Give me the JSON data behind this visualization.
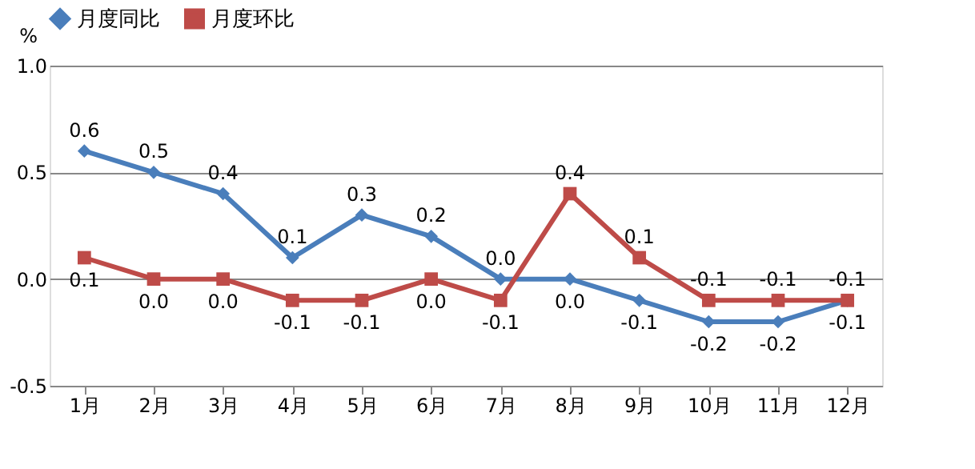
{
  "chart_data": {
    "type": "line",
    "ylabel": "%",
    "categories": [
      "1月",
      "2月",
      "3月",
      "4月",
      "5月",
      "6月",
      "7月",
      "8月",
      "9月",
      "10月",
      "11月",
      "12月"
    ],
    "series": [
      {
        "name": "月度同比",
        "color": "#4a7ebb",
        "marker": "diamond",
        "values": [
          0.6,
          0.5,
          0.4,
          0.1,
          0.3,
          0.2,
          0.0,
          0.0,
          -0.1,
          -0.2,
          -0.2,
          -0.1
        ],
        "value_labels": [
          "0.6",
          "0.5",
          "0.4",
          "0.1",
          "0.3",
          "0.2",
          "0.0",
          "0.0",
          "-0.1",
          "-0.2",
          "-0.2",
          "-0.1"
        ]
      },
      {
        "name": "月度环比",
        "color": "#be4b48",
        "marker": "square",
        "values": [
          0.1,
          0.0,
          0.0,
          -0.1,
          -0.1,
          0.0,
          -0.1,
          0.4,
          0.1,
          -0.1,
          -0.1,
          -0.1
        ],
        "value_labels": [
          "0.1",
          "0.0",
          "0.0",
          "-0.1",
          "-0.1",
          "0.0",
          "-0.1",
          "0.4",
          "0.1",
          "-0.1",
          "-0.1",
          "-0.1"
        ]
      }
    ],
    "ylim": [
      -0.5,
      1.0
    ],
    "yticks": [
      {
        "value": -0.5,
        "label": "-0.5"
      },
      {
        "value": 0,
        "label": "0.0"
      },
      {
        "value": 0.5,
        "label": "0.5"
      },
      {
        "value": 1.0,
        "label": "1.0"
      }
    ],
    "grid": "y",
    "legend": "top",
    "line_style": "solid"
  }
}
